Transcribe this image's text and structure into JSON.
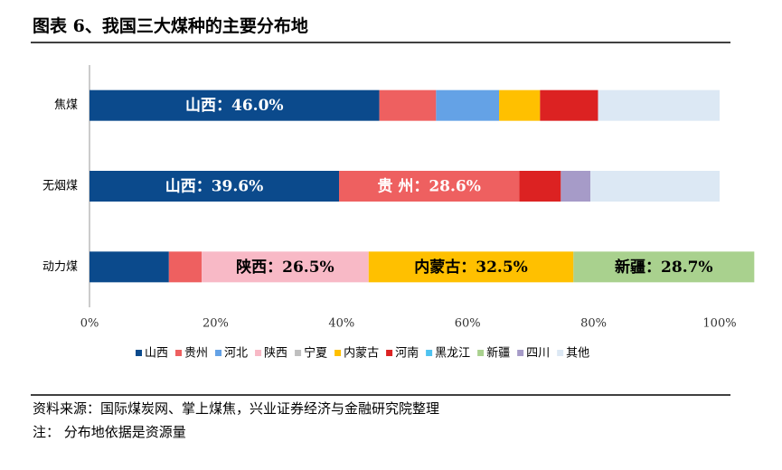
{
  "chart_data": {
    "type": "stacked-barh",
    "title": "图表 6、我国三大煤种的主要分布地",
    "categories": [
      "焦煤",
      "无烟煤",
      "动力煤"
    ],
    "series": [
      {
        "name": "山西",
        "color": "#0b4a8c",
        "values": [
          46.0,
          39.6,
          12.6
        ],
        "value_labels": [
          "山西：46.0%",
          "山西：39.6%",
          null
        ]
      },
      {
        "name": "贵州",
        "color": "#ee6060",
        "values": [
          9.0,
          28.6,
          5.2
        ],
        "value_labels": [
          null,
          "贵 州：28.6%",
          null
        ]
      },
      {
        "name": "河北",
        "color": "#64a2e6",
        "values": [
          10.0,
          null,
          null
        ]
      },
      {
        "name": "陕西",
        "color": "#f8b9c6",
        "values": [
          null,
          null,
          26.5
        ],
        "value_labels": [
          null,
          null,
          "陕西：26.5%"
        ]
      },
      {
        "name": "宁夏",
        "color": "#bfbfbf",
        "values": [
          null,
          null,
          null
        ]
      },
      {
        "name": "内蒙古",
        "color": "#ffc000",
        "values": [
          6.5,
          null,
          32.5
        ],
        "value_labels": [
          null,
          null,
          "内蒙古：32.5%"
        ]
      },
      {
        "name": "河南",
        "color": "#dc2222",
        "values": [
          9.2,
          6.6,
          null
        ]
      },
      {
        "name": "黑龙江",
        "color": "#4fc3f0",
        "values": [
          null,
          null,
          null
        ]
      },
      {
        "name": "新疆",
        "color": "#a9d18e",
        "values": [
          null,
          null,
          28.7
        ],
        "value_labels": [
          null,
          null,
          "新疆：28.7%"
        ]
      },
      {
        "name": "四川",
        "color": "#a69bc8",
        "values": [
          null,
          4.7,
          null
        ]
      },
      {
        "name": "其他",
        "color": "#dce8f4",
        "values": [
          19.3,
          20.5,
          null
        ]
      }
    ],
    "xlim": [
      0,
      100
    ],
    "xticks": [
      {
        "value": 0,
        "label": "0%"
      },
      {
        "value": 20,
        "label": "20%"
      },
      {
        "value": 40,
        "label": "40%"
      },
      {
        "value": 60,
        "label": "60%"
      },
      {
        "value": 80,
        "label": "80%"
      },
      {
        "value": 100,
        "label": "100%"
      }
    ],
    "legend": "bottom"
  },
  "footer": {
    "source": "资料来源：国际煤炭网、掌上煤焦，兴业证券经济与金融研究院整理",
    "note": "注：  分布地依据是资源量"
  }
}
